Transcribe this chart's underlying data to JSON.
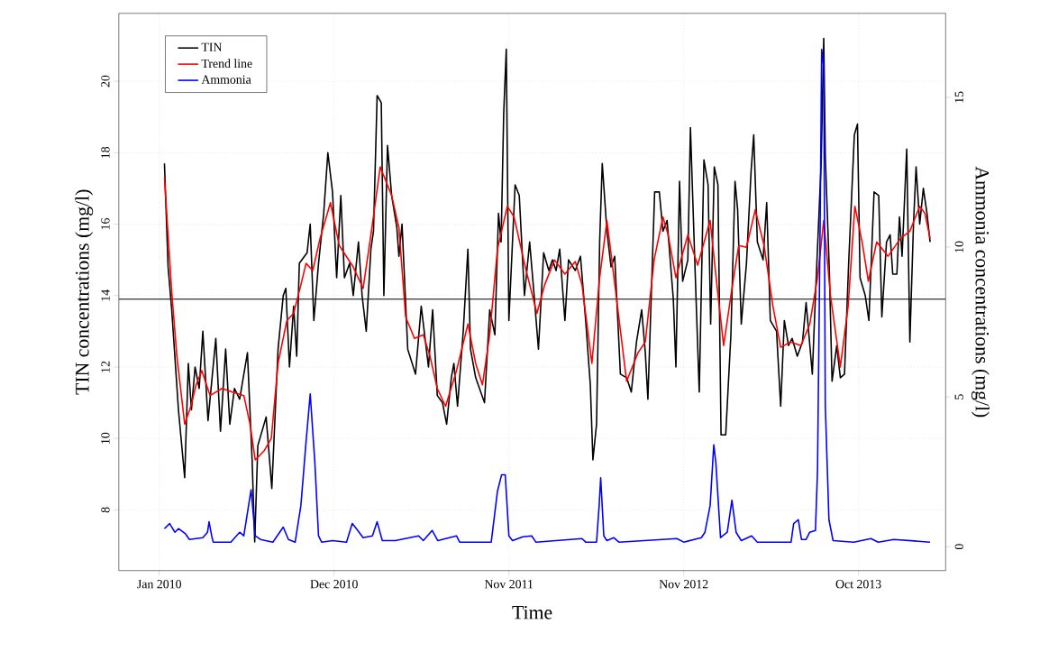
{
  "chart_data": {
    "type": "line",
    "xlabel": "Time",
    "ylabel": "TIN concentrations (mg/l)",
    "y2label": "Ammonia concentrations (mg/l)",
    "xlim": [
      "2009-11-08",
      "2014-03-21"
    ],
    "xticks": [
      {
        "value": "2010-01-25",
        "label": "Jan 2010"
      },
      {
        "value": "2010-12-28",
        "label": "Dec 2010"
      },
      {
        "value": "2011-11-30",
        "label": "Nov 2011"
      },
      {
        "value": "2012-11-01",
        "label": "Nov 2012"
      },
      {
        "value": "2013-10-04",
        "label": "Oct 2013"
      }
    ],
    "ylim": [
      6.3,
      21.9
    ],
    "yticks": [
      8,
      10,
      12,
      14,
      16,
      18,
      20
    ],
    "y2lim": [
      -0.8,
      17.8
    ],
    "y2ticks": [
      0,
      5,
      10,
      15
    ],
    "grid": true,
    "legend": "top left",
    "marker": "none",
    "line_style": "solid",
    "ref_lines": [
      {
        "axis": "y",
        "value": 13.9,
        "color": "#000000"
      }
    ],
    "series": [
      {
        "name": "TIN",
        "color": "#000000",
        "x": [
          "2010-02-04",
          "2010-02-11",
          "2010-02-18",
          "2010-03-03",
          "2010-03-15",
          "2010-03-22",
          "2010-03-28",
          "2010-04-04",
          "2010-04-12",
          "2010-04-19",
          "2010-04-29",
          "2010-05-14",
          "2010-05-23",
          "2010-06-02",
          "2010-06-10",
          "2010-06-19",
          "2010-06-29",
          "2010-07-14",
          "2010-07-23",
          "2010-07-28",
          "2010-08-03",
          "2010-08-19",
          "2010-08-30",
          "2010-09-11",
          "2010-09-21",
          "2010-09-26",
          "2010-10-03",
          "2010-10-11",
          "2010-10-17",
          "2010-10-22",
          "2010-11-06",
          "2010-11-12",
          "2010-11-19",
          "2010-11-28",
          "2010-12-08",
          "2010-12-16",
          "2010-12-25",
          "2011-01-02",
          "2011-01-10",
          "2011-01-17",
          "2011-01-27",
          "2011-02-03",
          "2011-02-13",
          "2011-02-20",
          "2011-02-28",
          "2011-03-09",
          "2011-03-14",
          "2011-03-21",
          "2011-03-29",
          "2011-04-03",
          "2011-04-10",
          "2011-04-18",
          "2011-04-28",
          "2011-05-02",
          "2011-05-08",
          "2011-05-19",
          "2011-06-03",
          "2011-06-14",
          "2011-06-28",
          "2011-07-06",
          "2011-07-15",
          "2011-07-25",
          "2011-08-02",
          "2011-08-11",
          "2011-08-16",
          "2011-08-23",
          "2011-09-03",
          "2011-09-12",
          "2011-09-17",
          "2011-09-27",
          "2011-10-14",
          "2011-10-24",
          "2011-11-03",
          "2011-11-10",
          "2011-11-15",
          "2011-11-20",
          "2011-11-25",
          "2011-11-30",
          "2011-12-12",
          "2011-12-20",
          "2011-12-30",
          "2012-01-09",
          "2012-01-16",
          "2012-01-26",
          "2012-02-05",
          "2012-02-15",
          "2012-02-22",
          "2012-02-29",
          "2012-03-07",
          "2012-03-17",
          "2012-03-24",
          "2012-04-06",
          "2012-04-16",
          "2012-04-26",
          "2012-05-05",
          "2012-05-10",
          "2012-05-17",
          "2012-05-23",
          "2012-05-28",
          "2012-06-06",
          "2012-06-14",
          "2012-06-21",
          "2012-07-02",
          "2012-07-14",
          "2012-07-23",
          "2012-08-02",
          "2012-08-12",
          "2012-08-19",
          "2012-08-24",
          "2012-09-06",
          "2012-09-15",
          "2012-09-22",
          "2012-09-30",
          "2012-10-12",
          "2012-10-17",
          "2012-10-24",
          "2012-10-30",
          "2012-11-09",
          "2012-11-14",
          "2012-11-23",
          "2012-12-01",
          "2012-12-10",
          "2012-12-18",
          "2012-12-23",
          "2012-12-30",
          "2013-01-06",
          "2013-01-12",
          "2013-01-21",
          "2013-01-31",
          "2013-02-08",
          "2013-02-13",
          "2013-02-20",
          "2013-03-02",
          "2013-03-11",
          "2013-03-16",
          "2013-03-23",
          "2013-04-03",
          "2013-04-10",
          "2013-04-17",
          "2013-04-29",
          "2013-05-07",
          "2013-05-14",
          "2013-05-22",
          "2013-05-29",
          "2013-06-08",
          "2013-06-18",
          "2013-06-25",
          "2013-07-07",
          "2013-07-13",
          "2013-07-24",
          "2013-07-29",
          "2013-08-01",
          "2013-08-09",
          "2013-08-14",
          "2013-08-23",
          "2013-08-30",
          "2013-09-07",
          "2013-09-15",
          "2013-09-26",
          "2013-10-02",
          "2013-10-07",
          "2013-10-17",
          "2013-10-24",
          "2013-11-03",
          "2013-11-12",
          "2013-11-18",
          "2013-11-27",
          "2013-12-04",
          "2013-12-09",
          "2013-12-17",
          "2013-12-22",
          "2013-12-27",
          "2014-01-05",
          "2014-01-11",
          "2014-01-18",
          "2014-01-23",
          "2014-01-30",
          "2014-02-06",
          "2014-02-13",
          "2014-02-19"
        ],
        "values": [
          17.7,
          14.8,
          13.6,
          10.8,
          8.9,
          12.1,
          10.8,
          12.0,
          11.4,
          13.0,
          10.5,
          12.8,
          10.2,
          12.5,
          10.4,
          11.4,
          11.1,
          12.4,
          9.4,
          7.1,
          9.8,
          10.6,
          8.6,
          12.5,
          14.0,
          14.2,
          12.0,
          13.7,
          12.3,
          14.9,
          15.2,
          16.0,
          13.3,
          14.9,
          16.3,
          18.0,
          16.9,
          14.5,
          16.8,
          14.5,
          14.9,
          14.0,
          15.5,
          14.0,
          13.0,
          15.3,
          15.8,
          19.6,
          19.4,
          14.0,
          18.2,
          16.8,
          15.9,
          15.1,
          16.0,
          12.5,
          11.8,
          13.7,
          12.0,
          13.6,
          11.2,
          11.0,
          10.4,
          11.7,
          12.1,
          10.9,
          13.0,
          15.3,
          12.5,
          11.7,
          11.0,
          13.6,
          12.9,
          16.3,
          15.5,
          19.1,
          20.9,
          13.3,
          17.1,
          16.8,
          14.0,
          15.5,
          14.3,
          12.5,
          15.2,
          14.7,
          15.0,
          14.7,
          15.3,
          13.3,
          15.0,
          14.7,
          15.1,
          13.3,
          11.5,
          9.4,
          10.4,
          15.5,
          17.7,
          15.8,
          14.8,
          15.1,
          11.8,
          11.7,
          11.3,
          12.7,
          13.6,
          12.4,
          11.1,
          16.9,
          16.9,
          15.8,
          16.1,
          13.9,
          12.0,
          17.2,
          14.4,
          15.0,
          18.7,
          14.7,
          11.3,
          17.8,
          17.1,
          13.2,
          17.6,
          17.1,
          10.1,
          10.1,
          12.9,
          17.2,
          16.4,
          13.2,
          14.9,
          17.5,
          18.5,
          15.5,
          15.0,
          16.6,
          13.3,
          13.0,
          10.9,
          13.3,
          12.6,
          12.8,
          12.3,
          12.7,
          13.8,
          11.8,
          14.0,
          17.7,
          21.2,
          17.9,
          14.6,
          11.6,
          12.6,
          11.7,
          11.8,
          14.9,
          18.5,
          18.8,
          14.5,
          14.0,
          13.3,
          16.9,
          16.8,
          13.4,
          15.5,
          15.7,
          14.6,
          14.6,
          16.2,
          15.1,
          18.1,
          12.7,
          16.0,
          17.6,
          16.0,
          17.0,
          16.3,
          15.5
        ]
      },
      {
        "name": "Trend line",
        "color": "#ff0000",
        "x": [
          "2010-02-04",
          "2010-02-18",
          "2010-02-28",
          "2010-03-15",
          "2010-03-27",
          "2010-04-06",
          "2010-04-17",
          "2010-05-03",
          "2010-05-26",
          "2010-06-15",
          "2010-07-07",
          "2010-07-19",
          "2010-07-29",
          "2010-08-15",
          "2010-08-29",
          "2010-09-11",
          "2010-09-28",
          "2010-10-11",
          "2010-10-25",
          "2010-11-04",
          "2010-11-17",
          "2010-12-01",
          "2010-12-21",
          "2011-01-07",
          "2011-02-03",
          "2011-02-22",
          "2011-03-09",
          "2011-03-27",
          "2011-04-18",
          "2011-05-02",
          "2011-05-15",
          "2011-06-01",
          "2011-06-18",
          "2011-07-01",
          "2011-07-15",
          "2011-07-31",
          "2011-08-21",
          "2011-09-12",
          "2011-09-27",
          "2011-10-10",
          "2011-10-24",
          "2011-11-08",
          "2011-11-27",
          "2011-12-10",
          "2011-12-30",
          "2012-01-23",
          "2012-02-07",
          "2012-02-26",
          "2012-03-17",
          "2012-04-06",
          "2012-04-19",
          "2012-05-08",
          "2012-05-23",
          "2012-06-06",
          "2012-06-23",
          "2012-07-14",
          "2012-08-05",
          "2012-08-19",
          "2012-09-05",
          "2012-09-22",
          "2012-10-02",
          "2012-10-17",
          "2012-11-09",
          "2012-11-28",
          "2012-12-22",
          "2013-01-04",
          "2013-01-17",
          "2013-01-31",
          "2013-02-15",
          "2013-03-02",
          "2013-03-19",
          "2013-04-05",
          "2013-04-22",
          "2013-05-07",
          "2013-05-26",
          "2013-06-15",
          "2013-07-02",
          "2013-07-17",
          "2013-07-29",
          "2013-08-11",
          "2013-08-30",
          "2013-09-14",
          "2013-09-27",
          "2013-10-11",
          "2013-10-23",
          "2013-11-08",
          "2013-11-30",
          "2013-12-24",
          "2014-01-11",
          "2014-01-30",
          "2014-02-09",
          "2014-02-19"
        ],
        "values": [
          17.3,
          14.1,
          12.3,
          10.4,
          10.9,
          11.5,
          11.9,
          11.2,
          11.4,
          11.3,
          11.2,
          10.4,
          9.4,
          9.65,
          10.0,
          12.1,
          13.3,
          13.5,
          14.3,
          14.9,
          14.7,
          15.6,
          16.6,
          15.4,
          14.8,
          14.2,
          15.7,
          17.6,
          16.8,
          15.9,
          13.4,
          12.8,
          12.9,
          12.3,
          11.4,
          10.9,
          11.9,
          13.2,
          12.1,
          11.5,
          12.9,
          15.3,
          16.5,
          16.2,
          14.9,
          13.5,
          14.3,
          15.0,
          14.6,
          14.95,
          14.3,
          12.1,
          14.5,
          16.1,
          14.1,
          11.6,
          12.4,
          12.7,
          15.0,
          16.2,
          15.7,
          14.5,
          15.7,
          14.85,
          16.1,
          14.3,
          12.6,
          14.0,
          15.4,
          15.35,
          16.4,
          15.4,
          13.7,
          12.55,
          12.7,
          12.6,
          13.2,
          14.5,
          16.1,
          14.0,
          12.0,
          13.7,
          16.5,
          15.5,
          14.4,
          15.5,
          15.1,
          15.6,
          15.8,
          16.5,
          16.3,
          15.6
        ]
      },
      {
        "name": "Ammonia",
        "color": "#0000ff",
        "axis": "y2",
        "x": [
          "2010-02-04",
          "2010-02-14",
          "2010-02-24",
          "2010-03-03",
          "2010-03-17",
          "2010-03-24",
          "2010-04-19",
          "2010-04-28",
          "2010-05-01",
          "2010-05-06",
          "2010-05-09",
          "2010-06-12",
          "2010-06-29",
          "2010-07-07",
          "2010-07-21",
          "2010-07-29",
          "2010-08-08",
          "2010-09-01",
          "2010-09-21",
          "2010-10-01",
          "2010-10-14",
          "2010-10-25",
          "2010-11-04",
          "2010-11-12",
          "2010-11-21",
          "2010-11-28",
          "2010-12-04",
          "2010-12-25",
          "2011-01-21",
          "2011-02-01",
          "2011-02-09",
          "2011-02-22",
          "2011-03-12",
          "2011-03-21",
          "2011-03-31",
          "2011-04-25",
          "2011-06-09",
          "2011-06-18",
          "2011-07-05",
          "2011-07-16",
          "2011-08-21",
          "2011-08-27",
          "2011-10-27",
          "2011-11-08",
          "2011-11-16",
          "2011-11-23",
          "2011-11-30",
          "2011-12-07",
          "2011-12-27",
          "2012-01-13",
          "2012-01-21",
          "2012-04-19",
          "2012-04-26",
          "2012-05-17",
          "2012-05-22",
          "2012-05-25",
          "2012-05-31",
          "2012-06-06",
          "2012-06-19",
          "2012-06-29",
          "2012-10-19",
          "2012-11-01",
          "2012-12-05",
          "2012-12-12",
          "2012-12-22",
          "2012-12-29",
          "2013-01-02",
          "2013-01-11",
          "2013-01-24",
          "2013-02-02",
          "2013-02-10",
          "2013-02-20",
          "2013-03-12",
          "2013-03-23",
          "2013-05-27",
          "2013-06-01",
          "2013-06-10",
          "2013-06-16",
          "2013-06-25",
          "2013-07-02",
          "2013-07-13",
          "2013-07-17",
          "2013-07-22",
          "2013-07-25",
          "2013-07-29",
          "2013-08-01",
          "2013-08-08",
          "2013-08-16",
          "2013-09-25",
          "2013-10-28",
          "2013-11-11",
          "2013-12-11",
          "2014-02-19"
        ],
        "values": [
          0.6,
          0.77,
          0.48,
          0.6,
          0.42,
          0.24,
          0.3,
          0.48,
          0.83,
          0.36,
          0.15,
          0.15,
          0.48,
          0.36,
          1.9,
          0.36,
          0.24,
          0.15,
          0.65,
          0.24,
          0.15,
          1.37,
          3.5,
          5.1,
          2.8,
          0.36,
          0.15,
          0.2,
          0.15,
          0.77,
          0.6,
          0.3,
          0.36,
          0.83,
          0.2,
          0.2,
          0.36,
          0.2,
          0.54,
          0.2,
          0.36,
          0.15,
          0.15,
          1.85,
          2.4,
          2.4,
          0.36,
          0.2,
          0.33,
          0.36,
          0.15,
          0.27,
          0.15,
          0.15,
          1.37,
          2.3,
          0.36,
          0.2,
          0.3,
          0.15,
          0.27,
          0.15,
          0.3,
          0.48,
          1.37,
          3.4,
          2.8,
          0.3,
          0.48,
          1.55,
          0.48,
          0.2,
          0.36,
          0.15,
          0.15,
          0.77,
          0.9,
          0.24,
          0.24,
          0.48,
          0.54,
          2.56,
          10.65,
          16.6,
          16.0,
          4.7,
          0.9,
          0.2,
          0.15,
          0.27,
          0.15,
          0.24,
          0.15
        ]
      }
    ]
  }
}
